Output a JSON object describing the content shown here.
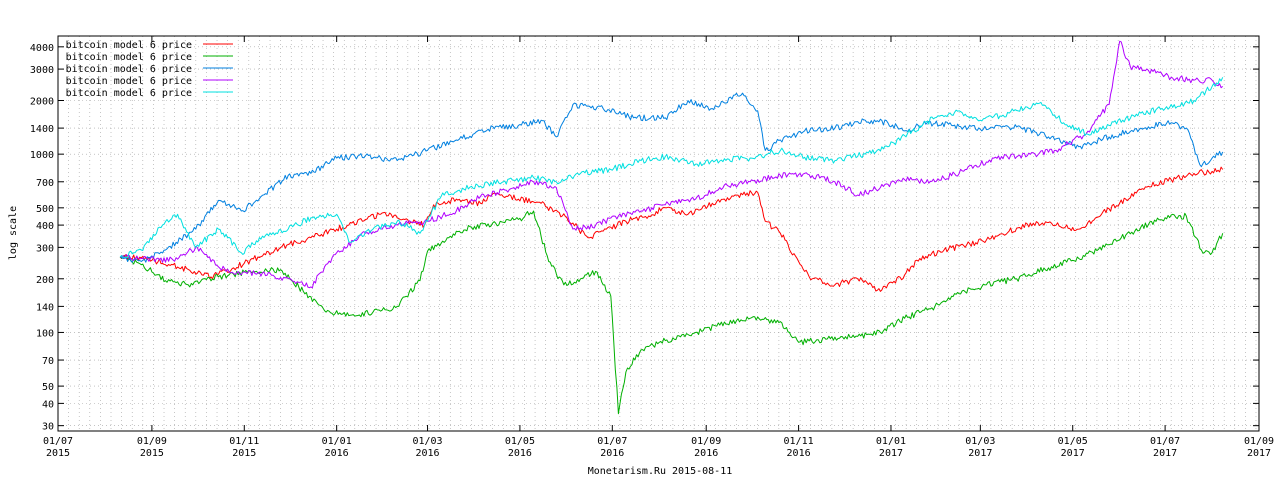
{
  "chart_data": {
    "type": "line",
    "title": "",
    "xlabel": "Monetarism.Ru 2015-08-11",
    "ylabel": "log scale",
    "y_scale": "log",
    "ylim": [
      28,
      4600
    ],
    "xlim": [
      "2015-07-01",
      "2017-09-01"
    ],
    "grid": true,
    "legend_position": "top-left",
    "y_ticks": [
      30,
      40,
      50,
      70,
      100,
      140,
      200,
      300,
      400,
      500,
      700,
      1000,
      1400,
      2000,
      3000,
      4000
    ],
    "x_ticks": [
      {
        "date": "2015-07-01",
        "line1": "01/07",
        "line2": "2015"
      },
      {
        "date": "2015-09-01",
        "line1": "01/09",
        "line2": "2015"
      },
      {
        "date": "2015-11-01",
        "line1": "01/11",
        "line2": "2015"
      },
      {
        "date": "2016-01-01",
        "line1": "01/01",
        "line2": "2016"
      },
      {
        "date": "2016-03-01",
        "line1": "01/03",
        "line2": "2016"
      },
      {
        "date": "2016-05-01",
        "line1": "01/05",
        "line2": "2016"
      },
      {
        "date": "2016-07-01",
        "line1": "01/07",
        "line2": "2016"
      },
      {
        "date": "2016-09-01",
        "line1": "01/09",
        "line2": "2016"
      },
      {
        "date": "2016-11-01",
        "line1": "01/11",
        "line2": "2016"
      },
      {
        "date": "2017-01-01",
        "line1": "01/01",
        "line2": "2017"
      },
      {
        "date": "2017-03-01",
        "line1": "01/03",
        "line2": "2017"
      },
      {
        "date": "2017-05-01",
        "line1": "01/05",
        "line2": "2017"
      },
      {
        "date": "2017-07-01",
        "line1": "01/07",
        "line2": "2017"
      },
      {
        "date": "2017-09-01",
        "line1": "01/09",
        "line2": "2017"
      }
    ],
    "series": [
      {
        "name": "bitcoin model 6 price",
        "color": "#ff0000",
        "points": [
          [
            "2015-08-11",
            265
          ],
          [
            "2015-08-25",
            262
          ],
          [
            "2015-09-15",
            240
          ],
          [
            "2015-10-01",
            215
          ],
          [
            "2015-10-10",
            205
          ],
          [
            "2015-10-25",
            230
          ],
          [
            "2015-11-10",
            265
          ],
          [
            "2015-11-25",
            300
          ],
          [
            "2015-12-15",
            340
          ],
          [
            "2016-01-01",
            380
          ],
          [
            "2016-01-20",
            430
          ],
          [
            "2016-02-01",
            470
          ],
          [
            "2016-02-15",
            430
          ],
          [
            "2016-02-28",
            400
          ],
          [
            "2016-03-05",
            520
          ],
          [
            "2016-03-20",
            560
          ],
          [
            "2016-04-05",
            530
          ],
          [
            "2016-04-15",
            600
          ],
          [
            "2016-04-30",
            560
          ],
          [
            "2016-05-15",
            530
          ],
          [
            "2016-06-01",
            440
          ],
          [
            "2016-06-15",
            340
          ],
          [
            "2016-06-25",
            370
          ],
          [
            "2016-07-10",
            420
          ],
          [
            "2016-07-25",
            450
          ],
          [
            "2016-08-05",
            500
          ],
          [
            "2016-08-20",
            460
          ],
          [
            "2016-09-05",
            530
          ],
          [
            "2016-09-20",
            590
          ],
          [
            "2016-10-05",
            610
          ],
          [
            "2016-10-10",
            420
          ],
          [
            "2016-10-20",
            360
          ],
          [
            "2016-11-01",
            250
          ],
          [
            "2016-11-10",
            200
          ],
          [
            "2016-11-25",
            185
          ],
          [
            "2016-12-10",
            200
          ],
          [
            "2016-12-25",
            170
          ],
          [
            "2017-01-10",
            210
          ],
          [
            "2017-01-20",
            260
          ],
          [
            "2017-02-05",
            290
          ],
          [
            "2017-02-20",
            310
          ],
          [
            "2017-03-05",
            330
          ],
          [
            "2017-03-20",
            370
          ],
          [
            "2017-04-05",
            410
          ],
          [
            "2017-04-20",
            400
          ],
          [
            "2017-05-05",
            380
          ],
          [
            "2017-05-20",
            460
          ],
          [
            "2017-06-05",
            560
          ],
          [
            "2017-06-20",
            660
          ],
          [
            "2017-07-05",
            720
          ],
          [
            "2017-07-20",
            780
          ],
          [
            "2017-08-01",
            800
          ],
          [
            "2017-08-08",
            820
          ]
        ]
      },
      {
        "name": "bitcoin model 6 price",
        "color": "#00b000",
        "points": [
          [
            "2015-08-11",
            265
          ],
          [
            "2015-08-25",
            240
          ],
          [
            "2015-09-10",
            195
          ],
          [
            "2015-09-25",
            185
          ],
          [
            "2015-10-15",
            205
          ],
          [
            "2015-11-05",
            220
          ],
          [
            "2015-11-25",
            225
          ],
          [
            "2015-12-10",
            170
          ],
          [
            "2015-12-25",
            130
          ],
          [
            "2016-01-10",
            125
          ],
          [
            "2016-01-25",
            130
          ],
          [
            "2016-02-10",
            140
          ],
          [
            "2016-02-25",
            195
          ],
          [
            "2016-03-01",
            285
          ],
          [
            "2016-03-15",
            340
          ],
          [
            "2016-03-30",
            390
          ],
          [
            "2016-04-15",
            410
          ],
          [
            "2016-04-30",
            430
          ],
          [
            "2016-05-10",
            480
          ],
          [
            "2016-05-20",
            250
          ],
          [
            "2016-05-30",
            185
          ],
          [
            "2016-06-10",
            200
          ],
          [
            "2016-06-20",
            220
          ],
          [
            "2016-06-30",
            160
          ],
          [
            "2016-07-05",
            35
          ],
          [
            "2016-07-10",
            60
          ],
          [
            "2016-07-20",
            80
          ],
          [
            "2016-08-05",
            90
          ],
          [
            "2016-08-25",
            100
          ],
          [
            "2016-09-10",
            110
          ],
          [
            "2016-09-30",
            120
          ],
          [
            "2016-10-20",
            115
          ],
          [
            "2016-11-01",
            88
          ],
          [
            "2016-11-20",
            92
          ],
          [
            "2016-12-10",
            95
          ],
          [
            "2016-12-25",
            100
          ],
          [
            "2017-01-10",
            120
          ],
          [
            "2017-01-30",
            140
          ],
          [
            "2017-02-15",
            165
          ],
          [
            "2017-03-05",
            185
          ],
          [
            "2017-03-25",
            200
          ],
          [
            "2017-04-15",
            230
          ],
          [
            "2017-05-05",
            260
          ],
          [
            "2017-05-25",
            310
          ],
          [
            "2017-06-15",
            390
          ],
          [
            "2017-07-01",
            440
          ],
          [
            "2017-07-15",
            450
          ],
          [
            "2017-07-25",
            290
          ],
          [
            "2017-08-01",
            280
          ],
          [
            "2017-08-08",
            360
          ]
        ]
      },
      {
        "name": "bitcoin model 6 price",
        "color": "#0080e0",
        "points": [
          [
            "2015-08-11",
            265
          ],
          [
            "2015-08-25",
            250
          ],
          [
            "2015-09-10",
            290
          ],
          [
            "2015-09-30",
            380
          ],
          [
            "2015-10-15",
            550
          ],
          [
            "2015-10-30",
            480
          ],
          [
            "2015-11-15",
            600
          ],
          [
            "2015-11-30",
            760
          ],
          [
            "2015-12-15",
            780
          ],
          [
            "2016-01-01",
            950
          ],
          [
            "2016-01-20",
            980
          ],
          [
            "2016-02-10",
            920
          ],
          [
            "2016-03-01",
            1050
          ],
          [
            "2016-03-20",
            1200
          ],
          [
            "2016-04-10",
            1380
          ],
          [
            "2016-04-30",
            1450
          ],
          [
            "2016-05-15",
            1550
          ],
          [
            "2016-05-25",
            1250
          ],
          [
            "2016-06-05",
            1900
          ],
          [
            "2016-06-25",
            1800
          ],
          [
            "2016-07-15",
            1600
          ],
          [
            "2016-08-05",
            1600
          ],
          [
            "2016-08-20",
            2000
          ],
          [
            "2016-09-05",
            1800
          ],
          [
            "2016-09-25",
            2200
          ],
          [
            "2016-10-05",
            1750
          ],
          [
            "2016-10-10",
            1050
          ],
          [
            "2016-10-20",
            1200
          ],
          [
            "2016-11-05",
            1350
          ],
          [
            "2016-11-25",
            1400
          ],
          [
            "2016-12-15",
            1550
          ],
          [
            "2016-12-30",
            1500
          ],
          [
            "2017-01-10",
            1350
          ],
          [
            "2017-01-25",
            1500
          ],
          [
            "2017-02-10",
            1450
          ],
          [
            "2017-03-01",
            1380
          ],
          [
            "2017-03-25",
            1420
          ],
          [
            "2017-04-15",
            1250
          ],
          [
            "2017-05-05",
            1100
          ],
          [
            "2017-05-25",
            1250
          ],
          [
            "2017-06-15",
            1400
          ],
          [
            "2017-07-05",
            1500
          ],
          [
            "2017-07-15",
            1400
          ],
          [
            "2017-07-25",
            850
          ],
          [
            "2017-08-01",
            950
          ],
          [
            "2017-08-08",
            1030
          ]
        ]
      },
      {
        "name": "bitcoin model 6 price",
        "color": "#b000ff",
        "points": [
          [
            "2015-08-11",
            265
          ],
          [
            "2015-08-25",
            260
          ],
          [
            "2015-09-15",
            255
          ],
          [
            "2015-10-01",
            300
          ],
          [
            "2015-10-20",
            220
          ],
          [
            "2015-11-10",
            215
          ],
          [
            "2015-11-30",
            200
          ],
          [
            "2015-12-15",
            180
          ],
          [
            "2016-01-01",
            280
          ],
          [
            "2016-01-20",
            360
          ],
          [
            "2016-02-10",
            400
          ],
          [
            "2016-03-01",
            420
          ],
          [
            "2016-03-20",
            480
          ],
          [
            "2016-04-05",
            580
          ],
          [
            "2016-04-25",
            640
          ],
          [
            "2016-05-10",
            700
          ],
          [
            "2016-05-25",
            650
          ],
          [
            "2016-06-05",
            380
          ],
          [
            "2016-06-20",
            400
          ],
          [
            "2016-07-05",
            450
          ],
          [
            "2016-07-20",
            480
          ],
          [
            "2016-08-05",
            520
          ],
          [
            "2016-08-25",
            560
          ],
          [
            "2016-09-10",
            650
          ],
          [
            "2016-09-30",
            700
          ],
          [
            "2016-10-20",
            760
          ],
          [
            "2016-11-05",
            780
          ],
          [
            "2016-11-25",
            700
          ],
          [
            "2016-12-10",
            590
          ],
          [
            "2016-12-25",
            650
          ],
          [
            "2017-01-10",
            720
          ],
          [
            "2017-01-30",
            700
          ],
          [
            "2017-02-20",
            820
          ],
          [
            "2017-03-10",
            950
          ],
          [
            "2017-04-01",
            980
          ],
          [
            "2017-04-20",
            1050
          ],
          [
            "2017-05-10",
            1300
          ],
          [
            "2017-05-25",
            1900
          ],
          [
            "2017-06-01",
            4300
          ],
          [
            "2017-06-08",
            3100
          ],
          [
            "2017-06-20",
            2950
          ],
          [
            "2017-07-05",
            2700
          ],
          [
            "2017-07-20",
            2600
          ],
          [
            "2017-08-01",
            2600
          ],
          [
            "2017-08-08",
            2400
          ]
        ]
      },
      {
        "name": "bitcoin model 6 price",
        "color": "#00e0e0",
        "points": [
          [
            "2015-08-11",
            265
          ],
          [
            "2015-08-25",
            290
          ],
          [
            "2015-09-08",
            400
          ],
          [
            "2015-09-18",
            460
          ],
          [
            "2015-09-30",
            300
          ],
          [
            "2015-10-15",
            380
          ],
          [
            "2015-10-30",
            280
          ],
          [
            "2015-11-15",
            350
          ],
          [
            "2015-11-30",
            380
          ],
          [
            "2015-12-15",
            440
          ],
          [
            "2016-01-01",
            460
          ],
          [
            "2016-01-10",
            320
          ],
          [
            "2016-01-25",
            380
          ],
          [
            "2016-02-10",
            420
          ],
          [
            "2016-02-25",
            360
          ],
          [
            "2016-03-10",
            580
          ],
          [
            "2016-03-30",
            660
          ],
          [
            "2016-04-20",
            700
          ],
          [
            "2016-05-10",
            740
          ],
          [
            "2016-05-25",
            700
          ],
          [
            "2016-06-10",
            780
          ],
          [
            "2016-06-30",
            820
          ],
          [
            "2016-07-20",
            920
          ],
          [
            "2016-08-05",
            970
          ],
          [
            "2016-08-25",
            880
          ],
          [
            "2016-09-15",
            940
          ],
          [
            "2016-10-01",
            950
          ],
          [
            "2016-10-20",
            1050
          ],
          [
            "2016-11-05",
            960
          ],
          [
            "2016-11-25",
            920
          ],
          [
            "2016-12-15",
            1000
          ],
          [
            "2016-12-30",
            1100
          ],
          [
            "2017-01-15",
            1350
          ],
          [
            "2017-01-30",
            1600
          ],
          [
            "2017-02-15",
            1750
          ],
          [
            "2017-03-01",
            1550
          ],
          [
            "2017-03-20",
            1700
          ],
          [
            "2017-04-10",
            1950
          ],
          [
            "2017-04-25",
            1500
          ],
          [
            "2017-05-10",
            1300
          ],
          [
            "2017-05-25",
            1450
          ],
          [
            "2017-06-15",
            1700
          ],
          [
            "2017-07-01",
            1800
          ],
          [
            "2017-07-20",
            2000
          ],
          [
            "2017-08-01",
            2400
          ],
          [
            "2017-08-08",
            2700
          ]
        ]
      }
    ]
  }
}
